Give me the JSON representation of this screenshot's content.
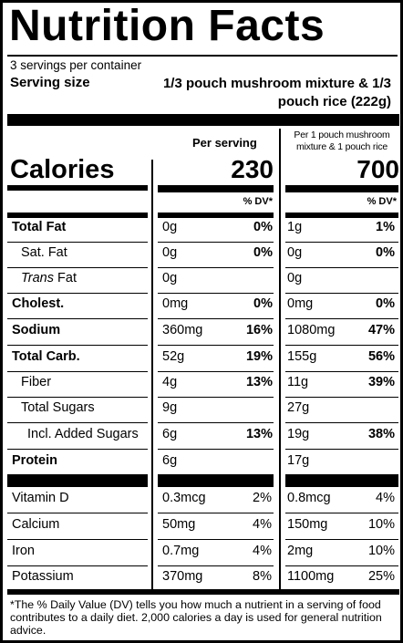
{
  "title": "Nutrition Facts",
  "servings_per_container": "3 servings per container",
  "serving_size_label": "Serving size",
  "serving_size_value": "1/3 pouch mushroom mixture & 1/3 pouch rice (222g)",
  "column_headers": {
    "per_serving": "Per serving",
    "per_pouch": "Per 1 pouch mushroom mixture & 1 pouch rice"
  },
  "calories": {
    "label": "Calories",
    "per_serving": "230",
    "per_pouch": "700"
  },
  "dv_header": "% DV*",
  "nutrients": [
    {
      "label": "Total Fat",
      "serving_amount": "0g",
      "serving_dv": "0%",
      "pouch_amount": "1g",
      "pouch_dv": "1%"
    },
    {
      "label": "Sat. Fat",
      "serving_amount": "0g",
      "serving_dv": "0%",
      "pouch_amount": "0g",
      "pouch_dv": "0%"
    },
    {
      "label_italic": "Trans",
      "label_rest": " Fat",
      "serving_amount": "0g",
      "pouch_amount": "0g"
    },
    {
      "label": "Cholest.",
      "serving_amount": "0mg",
      "serving_dv": "0%",
      "pouch_amount": "0mg",
      "pouch_dv": "0%"
    },
    {
      "label": "Sodium",
      "serving_amount": "360mg",
      "serving_dv": "16%",
      "pouch_amount": "1080mg",
      "pouch_dv": "47%"
    },
    {
      "label": "Total Carb.",
      "serving_amount": "52g",
      "serving_dv": "19%",
      "pouch_amount": "155g",
      "pouch_dv": "56%"
    },
    {
      "label": "Fiber",
      "serving_amount": "4g",
      "serving_dv": "13%",
      "pouch_amount": "11g",
      "pouch_dv": "39%"
    },
    {
      "label": "Total Sugars",
      "serving_amount": "9g",
      "pouch_amount": "27g"
    },
    {
      "label": "Incl. Added Sugars",
      "serving_amount": "6g",
      "serving_dv": "13%",
      "pouch_amount": "19g",
      "pouch_dv": "38%"
    },
    {
      "label": "Protein",
      "serving_amount": "6g",
      "pouch_amount": "17g"
    }
  ],
  "vitamins": [
    {
      "label": "Vitamin D",
      "serving_amount": "0.3mcg",
      "serving_dv": "2%",
      "pouch_amount": "0.8mcg",
      "pouch_dv": "4%"
    },
    {
      "label": "Calcium",
      "serving_amount": "50mg",
      "serving_dv": "4%",
      "pouch_amount": "150mg",
      "pouch_dv": "10%"
    },
    {
      "label": "Iron",
      "serving_amount": "0.7mg",
      "serving_dv": "4%",
      "pouch_amount": "2mg",
      "pouch_dv": "10%"
    },
    {
      "label": "Potassium",
      "serving_amount": "370mg",
      "serving_dv": "8%",
      "pouch_amount": "1100mg",
      "pouch_dv": "25%"
    }
  ],
  "footnote": "*The % Daily Value (DV) tells you how much a nutrient in a serving of food contributes to a daily diet. 2,000 calories a day is used for general nutrition advice."
}
